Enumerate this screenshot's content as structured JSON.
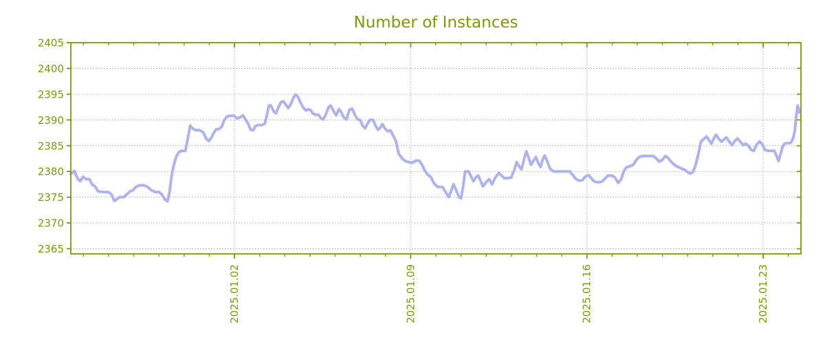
{
  "page": {
    "title": "Number of Instances"
  },
  "colors": {
    "axis": "#7d9a01",
    "label_text": "#7d9a01",
    "title_text": "#7d9a01",
    "line": "#aeb3ec",
    "grid": "#a9a9a9",
    "background": "#ffffff"
  },
  "chart_data": {
    "type": "line",
    "title": "Number of Instances",
    "xlabel": "",
    "ylabel": "",
    "legend": "none",
    "grid": "both-dashed",
    "x_axis": {
      "tick_labels": [
        "2025.01.02",
        "2025.01.09",
        "2025.01.16",
        "2025.01.23"
      ],
      "tick_days": [
        6.5,
        13.5,
        20.5,
        27.5
      ],
      "minor_tick_start_day": 0.5,
      "minor_tick_step_days": 1,
      "domain_days": [
        0,
        29
      ]
    },
    "y_axis": {
      "ticks": [
        2365,
        2370,
        2375,
        2380,
        2385,
        2390,
        2395,
        2400,
        2405
      ],
      "lim": [
        2364,
        2405
      ]
    },
    "series_name": "Number of Instances",
    "points": [
      [
        0.0,
        2379.5
      ],
      [
        0.14,
        2380.1
      ],
      [
        0.27,
        2378.6
      ],
      [
        0.38,
        2378.1
      ],
      [
        0.49,
        2379.0
      ],
      [
        0.6,
        2378.5
      ],
      [
        0.74,
        2378.5
      ],
      [
        0.84,
        2377.5
      ],
      [
        0.98,
        2377.0
      ],
      [
        1.09,
        2376.1
      ],
      [
        1.31,
        2376.0
      ],
      [
        1.5,
        2376.0
      ],
      [
        1.63,
        2375.4
      ],
      [
        1.72,
        2374.3
      ],
      [
        1.83,
        2374.6
      ],
      [
        1.93,
        2375.0
      ],
      [
        2.1,
        2375.0
      ],
      [
        2.21,
        2375.5
      ],
      [
        2.34,
        2376.1
      ],
      [
        2.45,
        2376.3
      ],
      [
        2.59,
        2377.0
      ],
      [
        2.72,
        2377.3
      ],
      [
        2.91,
        2377.3
      ],
      [
        3.05,
        2377.0
      ],
      [
        3.19,
        2376.4
      ],
      [
        3.35,
        2376.0
      ],
      [
        3.51,
        2376.0
      ],
      [
        3.62,
        2375.5
      ],
      [
        3.73,
        2374.6
      ],
      [
        3.84,
        2374.2
      ],
      [
        3.92,
        2376.0
      ],
      [
        4.0,
        2379.0
      ],
      [
        4.09,
        2381.3
      ],
      [
        4.2,
        2383.0
      ],
      [
        4.3,
        2383.8
      ],
      [
        4.41,
        2384.0
      ],
      [
        4.55,
        2384.0
      ],
      [
        4.63,
        2386.0
      ],
      [
        4.74,
        2388.9
      ],
      [
        4.85,
        2388.3
      ],
      [
        4.96,
        2388.0
      ],
      [
        5.12,
        2388.0
      ],
      [
        5.26,
        2387.6
      ],
      [
        5.37,
        2386.4
      ],
      [
        5.48,
        2385.9
      ],
      [
        5.58,
        2386.5
      ],
      [
        5.69,
        2387.6
      ],
      [
        5.78,
        2388.2
      ],
      [
        5.88,
        2388.2
      ],
      [
        5.99,
        2388.7
      ],
      [
        6.1,
        2390.0
      ],
      [
        6.21,
        2390.7
      ],
      [
        6.35,
        2390.8
      ],
      [
        6.48,
        2390.8
      ],
      [
        6.59,
        2390.3
      ],
      [
        6.73,
        2390.5
      ],
      [
        6.84,
        2390.9
      ],
      [
        6.95,
        2390.0
      ],
      [
        7.03,
        2389.4
      ],
      [
        7.14,
        2388.1
      ],
      [
        7.25,
        2388.0
      ],
      [
        7.33,
        2388.8
      ],
      [
        7.44,
        2389.0
      ],
      [
        7.6,
        2389.0
      ],
      [
        7.71,
        2389.3
      ],
      [
        7.79,
        2391.0
      ],
      [
        7.87,
        2392.8
      ],
      [
        7.95,
        2392.8
      ],
      [
        8.06,
        2391.6
      ],
      [
        8.15,
        2391.3
      ],
      [
        8.25,
        2392.5
      ],
      [
        8.36,
        2393.5
      ],
      [
        8.45,
        2393.6
      ],
      [
        8.55,
        2392.9
      ],
      [
        8.64,
        2392.3
      ],
      [
        8.74,
        2393.1
      ],
      [
        8.85,
        2394.4
      ],
      [
        8.93,
        2394.9
      ],
      [
        9.02,
        2394.5
      ],
      [
        9.13,
        2393.3
      ],
      [
        9.23,
        2392.4
      ],
      [
        9.34,
        2391.8
      ],
      [
        9.43,
        2392.1
      ],
      [
        9.53,
        2391.9
      ],
      [
        9.62,
        2391.2
      ],
      [
        9.73,
        2391.0
      ],
      [
        9.83,
        2391.0
      ],
      [
        9.94,
        2390.3
      ],
      [
        10.02,
        2390.1
      ],
      [
        10.13,
        2391.1
      ],
      [
        10.24,
        2392.5
      ],
      [
        10.32,
        2392.8
      ],
      [
        10.43,
        2391.8
      ],
      [
        10.54,
        2390.9
      ],
      [
        10.65,
        2392.1
      ],
      [
        10.73,
        2391.6
      ],
      [
        10.84,
        2390.5
      ],
      [
        10.95,
        2390.1
      ],
      [
        11.06,
        2391.9
      ],
      [
        11.17,
        2392.2
      ],
      [
        11.28,
        2391.0
      ],
      [
        11.39,
        2390.1
      ],
      [
        11.49,
        2390.0
      ],
      [
        11.6,
        2388.8
      ],
      [
        11.69,
        2388.4
      ],
      [
        11.8,
        2389.4
      ],
      [
        11.88,
        2390.0
      ],
      [
        12.01,
        2390.0
      ],
      [
        12.1,
        2388.9
      ],
      [
        12.2,
        2388.1
      ],
      [
        12.28,
        2388.4
      ],
      [
        12.37,
        2389.2
      ],
      [
        12.48,
        2388.3
      ],
      [
        12.59,
        2387.8
      ],
      [
        12.69,
        2388.0
      ],
      [
        12.8,
        2387.0
      ],
      [
        12.91,
        2385.9
      ],
      [
        13.02,
        2383.5
      ],
      [
        13.16,
        2382.5
      ],
      [
        13.29,
        2382.0
      ],
      [
        13.43,
        2381.8
      ],
      [
        13.57,
        2381.7
      ],
      [
        13.7,
        2382.1
      ],
      [
        13.84,
        2382.1
      ],
      [
        13.95,
        2381.3
      ],
      [
        14.06,
        2380.2
      ],
      [
        14.17,
        2379.4
      ],
      [
        14.3,
        2378.9
      ],
      [
        14.44,
        2377.6
      ],
      [
        14.57,
        2377.0
      ],
      [
        14.76,
        2377.0
      ],
      [
        14.9,
        2375.9
      ],
      [
        15.01,
        2375.0
      ],
      [
        15.12,
        2376.4
      ],
      [
        15.2,
        2377.5
      ],
      [
        15.31,
        2376.3
      ],
      [
        15.42,
        2375.0
      ],
      [
        15.5,
        2374.8
      ],
      [
        15.58,
        2377.0
      ],
      [
        15.66,
        2380.0
      ],
      [
        15.8,
        2380.0
      ],
      [
        15.91,
        2378.9
      ],
      [
        15.99,
        2378.1
      ],
      [
        16.1,
        2378.9
      ],
      [
        16.18,
        2379.2
      ],
      [
        16.29,
        2378.0
      ],
      [
        16.37,
        2377.1
      ],
      [
        16.51,
        2378.0
      ],
      [
        16.62,
        2378.5
      ],
      [
        16.73,
        2377.5
      ],
      [
        16.86,
        2378.8
      ],
      [
        17.0,
        2379.7
      ],
      [
        17.11,
        2379.2
      ],
      [
        17.22,
        2378.7
      ],
      [
        17.35,
        2378.7
      ],
      [
        17.49,
        2378.8
      ],
      [
        17.6,
        2380.1
      ],
      [
        17.71,
        2381.8
      ],
      [
        17.82,
        2380.9
      ],
      [
        17.9,
        2380.4
      ],
      [
        18.01,
        2382.5
      ],
      [
        18.09,
        2383.9
      ],
      [
        18.17,
        2382.9
      ],
      [
        18.28,
        2381.3
      ],
      [
        18.39,
        2382.2
      ],
      [
        18.47,
        2382.8
      ],
      [
        18.58,
        2381.5
      ],
      [
        18.66,
        2380.9
      ],
      [
        18.74,
        2382.3
      ],
      [
        18.82,
        2383.1
      ],
      [
        18.93,
        2381.9
      ],
      [
        19.04,
        2380.5
      ],
      [
        19.18,
        2380.0
      ],
      [
        19.42,
        2380.0
      ],
      [
        19.67,
        2380.0
      ],
      [
        19.83,
        2380.0
      ],
      [
        19.94,
        2379.3
      ],
      [
        20.05,
        2378.6
      ],
      [
        20.19,
        2378.2
      ],
      [
        20.32,
        2378.3
      ],
      [
        20.43,
        2379.0
      ],
      [
        20.57,
        2379.3
      ],
      [
        20.68,
        2378.6
      ],
      [
        20.81,
        2378.0
      ],
      [
        20.95,
        2377.9
      ],
      [
        21.08,
        2378.0
      ],
      [
        21.22,
        2378.6
      ],
      [
        21.33,
        2379.2
      ],
      [
        21.49,
        2379.2
      ],
      [
        21.6,
        2378.9
      ],
      [
        21.74,
        2377.8
      ],
      [
        21.85,
        2378.4
      ],
      [
        21.96,
        2380.0
      ],
      [
        22.07,
        2380.8
      ],
      [
        22.2,
        2381.0
      ],
      [
        22.34,
        2381.3
      ],
      [
        22.47,
        2382.3
      ],
      [
        22.58,
        2382.8
      ],
      [
        22.72,
        2383.0
      ],
      [
        22.94,
        2383.0
      ],
      [
        23.13,
        2383.0
      ],
      [
        23.26,
        2382.5
      ],
      [
        23.37,
        2381.9
      ],
      [
        23.48,
        2382.2
      ],
      [
        23.62,
        2383.0
      ],
      [
        23.73,
        2382.6
      ],
      [
        23.84,
        2381.9
      ],
      [
        23.97,
        2381.3
      ],
      [
        24.11,
        2380.9
      ],
      [
        24.24,
        2380.6
      ],
      [
        24.38,
        2380.3
      ],
      [
        24.49,
        2379.9
      ],
      [
        24.6,
        2379.6
      ],
      [
        24.71,
        2379.9
      ],
      [
        24.82,
        2381.3
      ],
      [
        24.93,
        2383.5
      ],
      [
        25.03,
        2385.8
      ],
      [
        25.14,
        2386.3
      ],
      [
        25.25,
        2386.8
      ],
      [
        25.36,
        2386.0
      ],
      [
        25.44,
        2385.4
      ],
      [
        25.55,
        2386.5
      ],
      [
        25.63,
        2387.1
      ],
      [
        25.74,
        2386.3
      ],
      [
        25.85,
        2385.8
      ],
      [
        25.96,
        2386.3
      ],
      [
        26.04,
        2386.6
      ],
      [
        26.15,
        2385.8
      ],
      [
        26.26,
        2385.1
      ],
      [
        26.37,
        2385.9
      ],
      [
        26.48,
        2386.4
      ],
      [
        26.59,
        2385.8
      ],
      [
        26.7,
        2385.1
      ],
      [
        26.8,
        2385.4
      ],
      [
        26.91,
        2385.0
      ],
      [
        27.02,
        2384.2
      ],
      [
        27.13,
        2384.0
      ],
      [
        27.24,
        2385.2
      ],
      [
        27.35,
        2385.8
      ],
      [
        27.46,
        2385.3
      ],
      [
        27.57,
        2384.2
      ],
      [
        27.68,
        2384.0
      ],
      [
        27.84,
        2384.0
      ],
      [
        27.95,
        2384.0
      ],
      [
        28.03,
        2383.0
      ],
      [
        28.11,
        2382.0
      ],
      [
        28.19,
        2383.4
      ],
      [
        28.27,
        2384.8
      ],
      [
        28.35,
        2385.4
      ],
      [
        28.49,
        2385.5
      ],
      [
        28.6,
        2385.6
      ],
      [
        28.68,
        2386.3
      ],
      [
        28.76,
        2388.0
      ],
      [
        28.81,
        2390.5
      ],
      [
        28.87,
        2392.8
      ],
      [
        28.92,
        2392.0
      ],
      [
        28.95,
        2391.4
      ]
    ]
  }
}
